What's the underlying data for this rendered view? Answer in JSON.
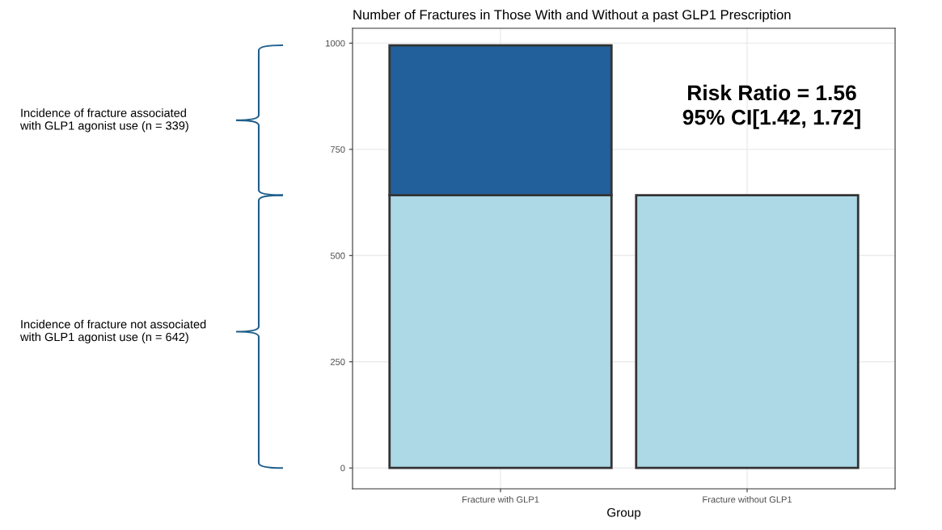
{
  "chart_data": {
    "type": "bar",
    "title": "Number of Fractures in Those With and Without a past GLP1 Prescription",
    "xlabel": "Group",
    "categories": [
      "Fracture with GLP1",
      "Fracture without GLP1"
    ],
    "stacked": true,
    "series": [
      {
        "color": "#add8e6",
        "values": [
          642,
          642
        ]
      },
      {
        "color": "#21609b",
        "values": [
          353,
          0
        ]
      }
    ],
    "ylim": [
      -49,
      1035
    ],
    "yticks": [
      0,
      250,
      500,
      750,
      1000
    ],
    "grid": true,
    "legend": false,
    "annotations": [
      "Incidence of fracture not associated\nwith GLP1 agonist use (n = 642)",
      "Incidence of fracture associated\nwith GLP1 agonist use (n = 339)",
      "Risk Ratio = 1.56\n95% CI[1.42, 1.72]"
    ]
  }
}
